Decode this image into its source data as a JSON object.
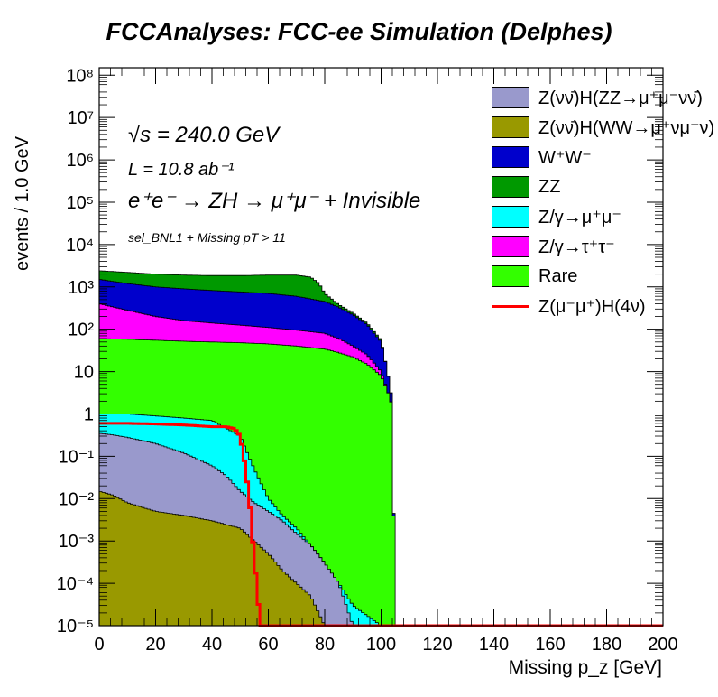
{
  "chart_data": {
    "type": "histogram",
    "title": "FCCAnalyses: FCC-ee Simulation (Delphes)",
    "xlabel": "Missing p_z [GeV]",
    "ylabel": "events / 1.0 GeV",
    "xlim": [
      0,
      200
    ],
    "ylim": [
      1e-05,
      150000000.0
    ],
    "yscale": "log",
    "legend_placement": "top-right",
    "annotations": [
      "√s = 240.0 GeV",
      "L = 10.8 ab⁻¹",
      "e⁺e⁻ → ZH → μ⁺μ⁻ + Invisible",
      "sel_BNL1 + Missing pT > 11"
    ],
    "x_ticks": [
      "0",
      "20",
      "40",
      "60",
      "80",
      "100",
      "120",
      "140",
      "160",
      "180",
      "200"
    ],
    "y_ticks": [
      "10⁻⁵",
      "10⁻⁴",
      "10⁻³",
      "10⁻²",
      "10⁻¹",
      "1",
      "10",
      "10²",
      "10³",
      "10⁴",
      "10⁵",
      "10⁶",
      "10⁷",
      "10⁸"
    ],
    "stack_cumulative_totals": [
      {
        "name": "Z(νν̄)H(WW→μ⁺νμ⁻ν)",
        "color": "#999900",
        "x": [
          0,
          5,
          10,
          20,
          30,
          40,
          50,
          55,
          60,
          65,
          70,
          75,
          80
        ],
        "y": [
          0.015,
          0.012,
          0.008,
          0.005,
          0.004,
          0.003,
          0.002,
          0.001,
          0.0005,
          0.0002,
          0.0001,
          5e-05,
          1e-05
        ]
      },
      {
        "name": "Z(νν̄)H(ZZ→μ⁺μ⁻νν̄)",
        "color": "#9999cc",
        "x": [
          0,
          5,
          10,
          20,
          30,
          40,
          45,
          50,
          55,
          60,
          65,
          70,
          75,
          80,
          85,
          90
        ],
        "y": [
          0.35,
          0.32,
          0.28,
          0.2,
          0.12,
          0.06,
          0.035,
          0.015,
          0.008,
          0.005,
          0.003,
          0.0015,
          0.0008,
          0.0003,
          0.0001,
          1e-05
        ]
      },
      {
        "name": "Z/γ→μ⁺μ⁻",
        "color": "#00ffff",
        "x": [
          0,
          10,
          20,
          30,
          40,
          50,
          55,
          60,
          65,
          70,
          75,
          80,
          85,
          90,
          100
        ],
        "y": [
          1.0,
          1.0,
          0.9,
          0.8,
          0.7,
          0.3,
          0.05,
          0.01,
          0.004,
          0.002,
          0.0008,
          0.0003,
          0.0001,
          3e-05,
          1e-05
        ]
      },
      {
        "name": "Rare",
        "color": "#33ff00",
        "x": [
          0,
          10,
          20,
          30,
          40,
          50,
          60,
          70,
          80,
          85,
          90,
          95,
          100,
          102,
          104,
          105
        ],
        "y": [
          60,
          58,
          55,
          52,
          50,
          48,
          45,
          40,
          34,
          28,
          22,
          15,
          8,
          4,
          1.5,
          1e-05
        ]
      },
      {
        "name": "Z/γ→τ⁺τ⁻",
        "color": "#ff00ff",
        "x": [
          0,
          10,
          20,
          30,
          40,
          50,
          60,
          70,
          80,
          85,
          90,
          95,
          100,
          102,
          104,
          105
        ],
        "y": [
          400,
          280,
          200,
          160,
          140,
          125,
          110,
          95,
          80,
          60,
          40,
          25,
          10,
          4,
          1.5,
          1e-05
        ]
      },
      {
        "name": "W⁺W⁻",
        "color": "#0000cc",
        "x": [
          0,
          10,
          20,
          30,
          40,
          50,
          60,
          70,
          80,
          85,
          90,
          95,
          100,
          102,
          104,
          105
        ],
        "y": [
          1500,
          1200,
          1000,
          900,
          820,
          760,
          700,
          600,
          450,
          330,
          220,
          130,
          50,
          12,
          2,
          1e-05
        ]
      },
      {
        "name": "ZZ",
        "color": "#009900",
        "x": [
          0,
          10,
          20,
          30,
          40,
          50,
          60,
          70,
          75,
          78,
          80,
          85,
          90,
          95,
          100,
          102,
          104,
          105
        ],
        "y": [
          2400,
          2200,
          2000,
          1900,
          1850,
          1850,
          1900,
          1900,
          1700,
          1200,
          700,
          380,
          240,
          140,
          55,
          12,
          2,
          1e-05
        ]
      }
    ],
    "signal_line": {
      "name": "Z(μ⁻μ⁺)H(4ν)",
      "color": "#ff0000",
      "x": [
        0,
        10,
        20,
        30,
        40,
        45,
        48,
        50,
        52,
        54,
        55,
        56,
        57,
        58,
        200
      ],
      "y": [
        0.6,
        0.6,
        0.58,
        0.55,
        0.5,
        0.5,
        0.45,
        0.3,
        0.05,
        0.003,
        0.0003,
        0.0001,
        1e-05,
        1e-05,
        1e-05
      ]
    },
    "legend": [
      {
        "label": "Z(νν̄)H(ZZ→μ⁺μ⁻νν̄)",
        "color": "#9999cc",
        "style": "box"
      },
      {
        "label": "Z(νν̄)H(WW→μ⁺νμ⁻ν)",
        "color": "#999900",
        "style": "box"
      },
      {
        "label": "W⁺W⁻",
        "color": "#0000cc",
        "style": "box"
      },
      {
        "label": "ZZ",
        "color": "#009900",
        "style": "box"
      },
      {
        "label": "Z/γ→μ⁺μ⁻",
        "color": "#00ffff",
        "style": "box"
      },
      {
        "label": "Z/γ→τ⁺τ⁻",
        "color": "#ff00ff",
        "style": "box"
      },
      {
        "label": "Rare",
        "color": "#33ff00",
        "style": "box"
      },
      {
        "label": "Z(μ⁻μ⁺)H(4ν)",
        "color": "#ff0000",
        "style": "line"
      }
    ]
  }
}
